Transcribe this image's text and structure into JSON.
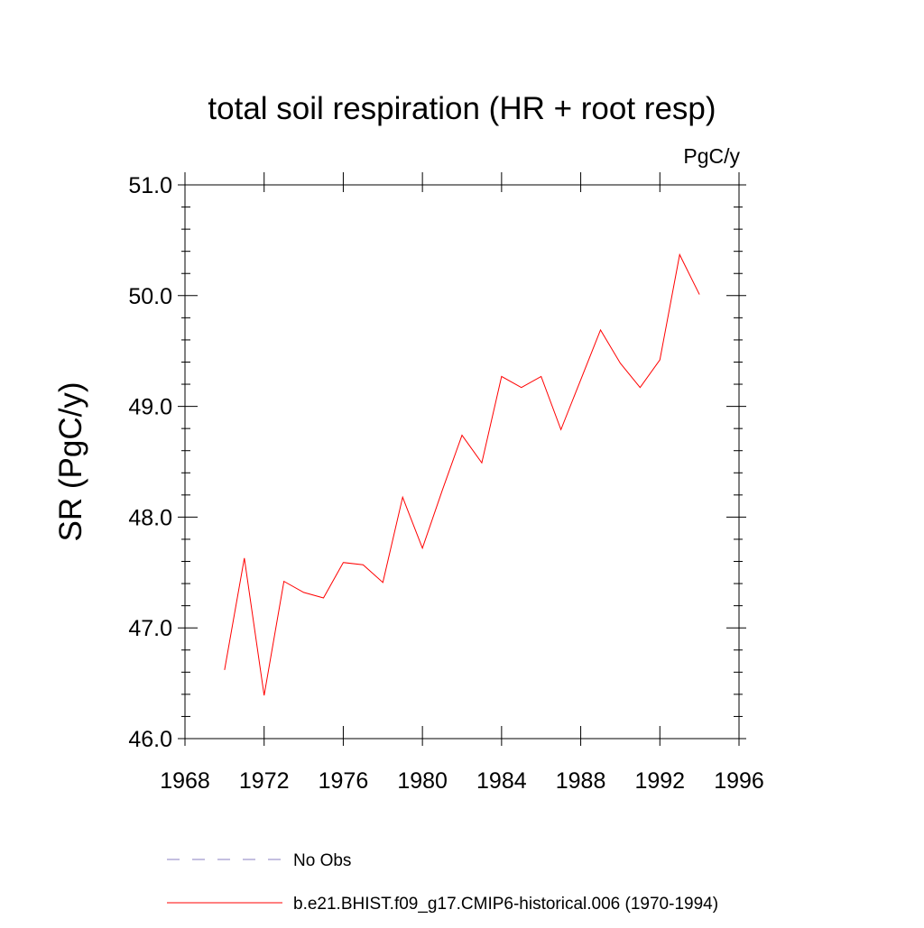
{
  "chart_data": {
    "type": "line",
    "title": "total soil respiration (HR + root resp)",
    "units_label": "PgC/y",
    "xlabel": "",
    "ylabel": "SR  (PgC/y)",
    "xlim": [
      1968,
      1996
    ],
    "ylim": [
      46.0,
      51.0
    ],
    "x_ticks": [
      1968,
      1972,
      1976,
      1980,
      1984,
      1988,
      1992,
      1996
    ],
    "x_tick_labels": [
      "1968",
      "1972",
      "1976",
      "1980",
      "1984",
      "1988",
      "1992",
      "1996"
    ],
    "y_ticks": [
      46.0,
      47.0,
      48.0,
      49.0,
      50.0,
      51.0
    ],
    "y_tick_labels": [
      "46.0",
      "47.0",
      "48.0",
      "49.0",
      "50.0",
      "51.0"
    ],
    "grid": false,
    "legend_position": "bottom",
    "series": [
      {
        "name": "b.e21.BHIST.f09_g17.CMIP6-historical.006 (1970-1994)",
        "color": "#ff0000",
        "style": "solid",
        "x": [
          1970,
          1971,
          1972,
          1973,
          1974,
          1975,
          1976,
          1977,
          1978,
          1979,
          1980,
          1981,
          1982,
          1983,
          1984,
          1985,
          1986,
          1987,
          1988,
          1989,
          1990,
          1991,
          1992,
          1993,
          1994
        ],
        "values": [
          46.62,
          47.63,
          46.39,
          47.42,
          47.32,
          47.27,
          47.59,
          47.57,
          47.41,
          48.18,
          47.72,
          48.24,
          48.74,
          48.49,
          49.27,
          49.17,
          49.27,
          48.79,
          49.24,
          49.69,
          49.39,
          49.17,
          49.42,
          50.37,
          50.01
        ]
      }
    ],
    "legend": [
      {
        "label": "No Obs",
        "color": "#8a7fc0",
        "style": "dashed"
      },
      {
        "label": "b.e21.BHIST.f09_g17.CMIP6-historical.006 (1970-1994)",
        "color": "#ff0000",
        "style": "solid"
      }
    ]
  }
}
